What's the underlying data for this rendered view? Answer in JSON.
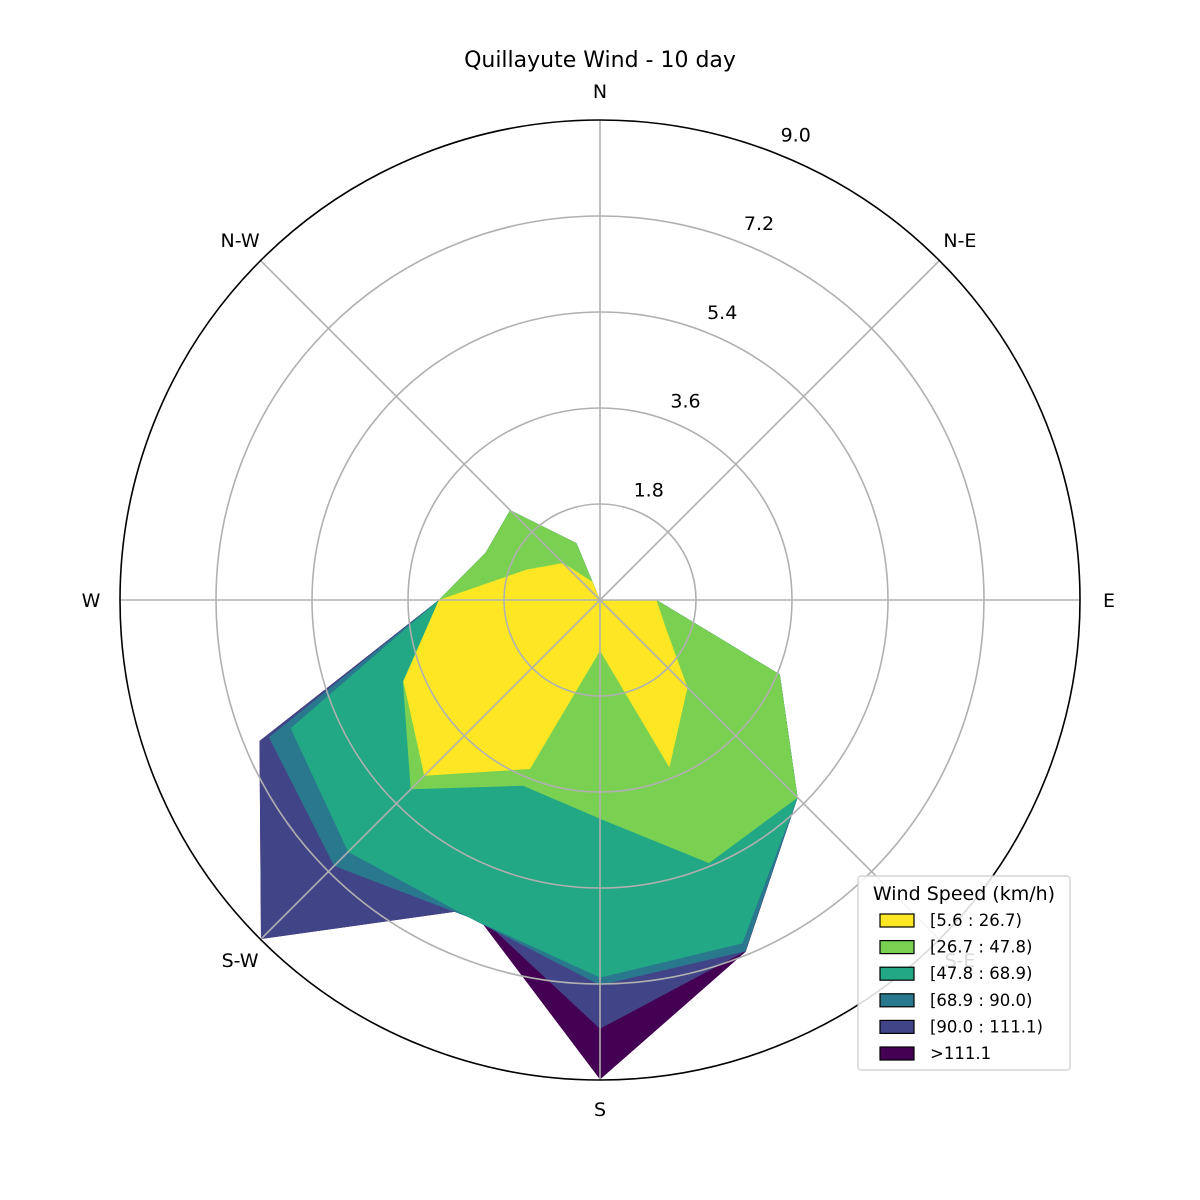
{
  "chart_data": {
    "type": "windrose-area",
    "title": "Quillayute Wind - 10 day",
    "direction_labels": [
      "N",
      "N-E",
      "E",
      "S-E",
      "S",
      "S-W",
      "W",
      "N-W"
    ],
    "radial_ticks": [
      "1.8",
      "3.6",
      "5.4",
      "7.2",
      "9.0"
    ],
    "rmax": 9.0,
    "grid": true,
    "sectors": 16,
    "sector_directions_deg": [
      0,
      22.5,
      45,
      67.5,
      90,
      112.5,
      135,
      157.5,
      180,
      202.5,
      225,
      247.5,
      270,
      292.5,
      315,
      337.5
    ],
    "legend": {
      "title": "Wind Speed (km/h)",
      "placement": "lower-right"
    },
    "series": [
      {
        "name": "[5.6 : 26.7)",
        "color": "#fde725",
        "cumulative": [
          0,
          0,
          0,
          0,
          1.06,
          1.33,
          2.32,
          3.4,
          0.95,
          3.43,
          4.66,
          3.99,
          3.02,
          1.49,
          0.98,
          0.37
        ]
      },
      {
        "name": "[26.7 : 47.8)",
        "color": "#7ad151",
        "cumulative": [
          0,
          0,
          0,
          0,
          1.06,
          3.65,
          5.24,
          5.34,
          4.1,
          3.77,
          5.02,
          4.0,
          3.02,
          2.32,
          2.38,
          1.15
        ]
      },
      {
        "name": "[47.8 : 68.9)",
        "color": "#22a884",
        "cumulative": [
          0,
          0,
          0,
          0,
          1.06,
          3.65,
          5.24,
          6.97,
          7.08,
          6.44,
          6.68,
          6.28,
          3.02,
          2.32,
          2.38,
          1.15
        ]
      },
      {
        "name": "[68.9 : 90.0)",
        "color": "#2a788e",
        "cumulative": [
          0,
          0,
          0,
          0,
          1.06,
          3.65,
          5.24,
          7.13,
          7.22,
          6.44,
          7.05,
          6.72,
          3.02,
          2.32,
          2.38,
          1.15
        ]
      },
      {
        "name": "[90.0 : 111.1)",
        "color": "#414487",
        "cumulative": [
          0,
          0,
          0,
          0,
          1.06,
          3.65,
          5.24,
          7.13,
          8.04,
          6.28,
          8.99,
          6.91,
          3.02,
          2.32,
          2.38,
          1.15
        ]
      },
      {
        "name": ">111.1",
        "color": "#440154",
        "cumulative": [
          0,
          0,
          0,
          0,
          1.06,
          3.65,
          5.24,
          7.14,
          8.99,
          6.28,
          8.99,
          6.91,
          3.02,
          2.32,
          2.38,
          1.15
        ]
      }
    ]
  }
}
